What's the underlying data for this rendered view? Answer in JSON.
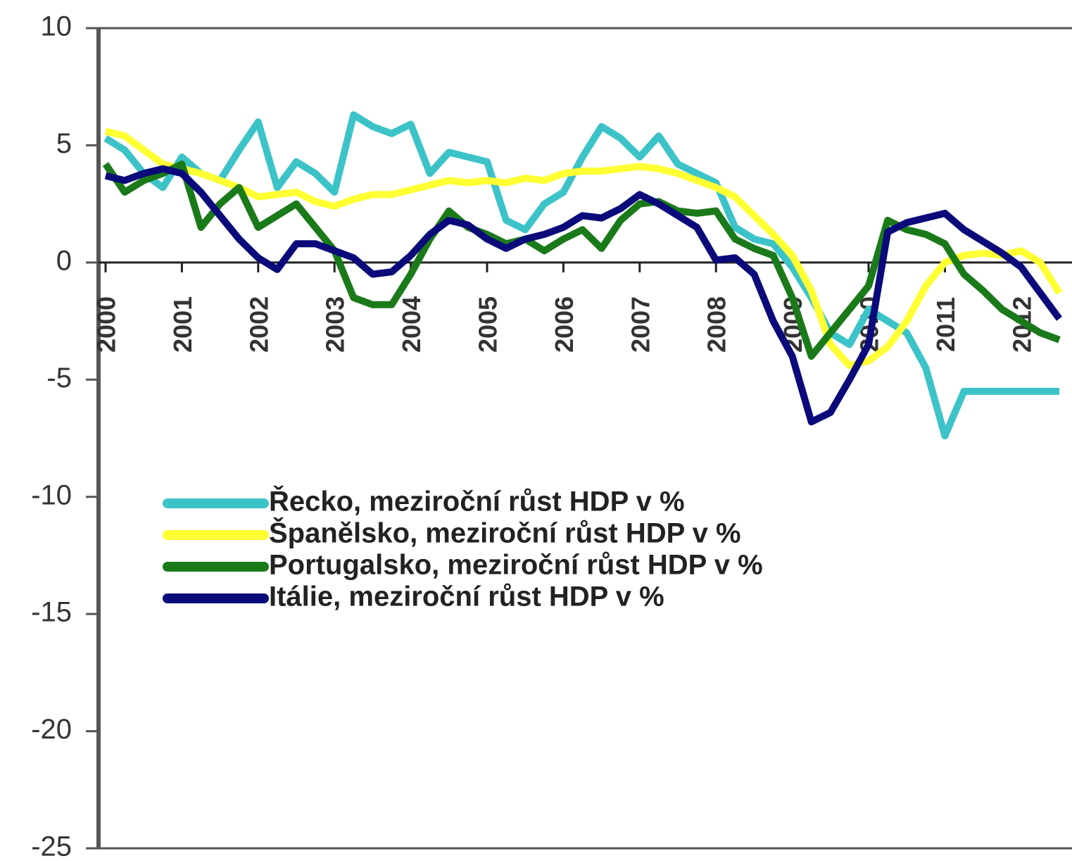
{
  "chart_data": {
    "type": "line",
    "categories": [
      "2000",
      null,
      null,
      null,
      "2001",
      null,
      null,
      null,
      "2002",
      null,
      null,
      null,
      "2003",
      null,
      null,
      null,
      "2004",
      null,
      null,
      null,
      "2005",
      null,
      null,
      null,
      "2006",
      null,
      null,
      null,
      "2007",
      null,
      null,
      null,
      "2008",
      null,
      null,
      null,
      "2009",
      null,
      null,
      null,
      "2010",
      null,
      null,
      null,
      "2011",
      null,
      null,
      null,
      "2012",
      null,
      null
    ],
    "series": [
      {
        "name": "Řecko, meziroční růst HDP v %",
        "color": "#3cc3c8",
        "values": [
          5.3,
          4.8,
          3.8,
          3.2,
          4.5,
          3.8,
          3.5,
          4.8,
          6.0,
          3.2,
          4.3,
          3.8,
          3.0,
          6.3,
          5.8,
          5.5,
          5.9,
          3.8,
          4.7,
          4.5,
          4.3,
          1.8,
          1.4,
          2.5,
          3.0,
          4.5,
          5.8,
          5.3,
          4.5,
          5.4,
          4.2,
          3.8,
          3.4,
          1.5,
          1.0,
          0.8,
          -0.2,
          -1.5,
          -3.0,
          -3.5,
          -2.0,
          -2.5,
          -3.0,
          -4.5,
          -7.4,
          -5.5,
          -5.5,
          -5.5,
          -5.5,
          -5.5,
          -5.5
        ]
      },
      {
        "name": "Španělsko, meziroční růst HDP v %",
        "color": "#ffff33",
        "values": [
          5.6,
          5.4,
          4.8,
          4.2,
          4.0,
          3.8,
          3.5,
          3.2,
          2.8,
          2.9,
          3.0,
          2.6,
          2.4,
          2.7,
          2.9,
          2.9,
          3.1,
          3.3,
          3.5,
          3.4,
          3.5,
          3.4,
          3.6,
          3.5,
          3.8,
          3.9,
          3.9,
          4.0,
          4.1,
          4.0,
          3.8,
          3.5,
          3.2,
          2.8,
          2.0,
          1.2,
          0.3,
          -1.2,
          -3.5,
          -4.4,
          -4.2,
          -3.6,
          -2.5,
          -1.0,
          0.0,
          0.3,
          0.4,
          0.3,
          0.5,
          0.0,
          -1.3
        ]
      },
      {
        "name": "Portugalsko, meziroční růst HDP v %",
        "color": "#1a7a1a",
        "values": [
          4.2,
          3.0,
          3.5,
          3.8,
          4.2,
          1.5,
          2.5,
          3.2,
          1.5,
          2.0,
          2.5,
          1.5,
          0.5,
          -1.5,
          -1.8,
          -1.8,
          -0.5,
          1.0,
          2.2,
          1.5,
          1.2,
          0.8,
          1.0,
          0.5,
          1.0,
          1.4,
          0.6,
          1.8,
          2.5,
          2.6,
          2.2,
          2.1,
          2.2,
          1.0,
          0.6,
          0.3,
          -1.5,
          -4.0,
          -3.0,
          -2.0,
          -1.0,
          1.8,
          1.4,
          1.2,
          0.8,
          -0.5,
          -1.2,
          -2.0,
          -2.5,
          -3.0,
          -3.3
        ]
      },
      {
        "name": "Itálie, meziroční růst HDP v %",
        "color": "#0a0a7a",
        "values": [
          3.7,
          3.5,
          3.8,
          4.0,
          3.8,
          3.0,
          2.0,
          1.0,
          0.2,
          -0.3,
          0.8,
          0.8,
          0.5,
          0.2,
          -0.5,
          -0.4,
          0.3,
          1.2,
          1.8,
          1.6,
          1.0,
          0.6,
          1.0,
          1.2,
          1.5,
          2.0,
          1.9,
          2.3,
          2.9,
          2.5,
          2.0,
          1.5,
          0.1,
          0.2,
          -0.5,
          -2.5,
          -4.0,
          -6.8,
          -6.4,
          -5.0,
          -3.5,
          1.3,
          1.7,
          1.9,
          2.1,
          1.4,
          0.9,
          0.4,
          -0.2,
          -1.3,
          -2.4
        ]
      }
    ],
    "ylim": [
      -25,
      10
    ],
    "yticks": [
      10,
      5,
      0,
      -5,
      -10,
      -15,
      -20,
      -25
    ],
    "legend": "center-left"
  }
}
